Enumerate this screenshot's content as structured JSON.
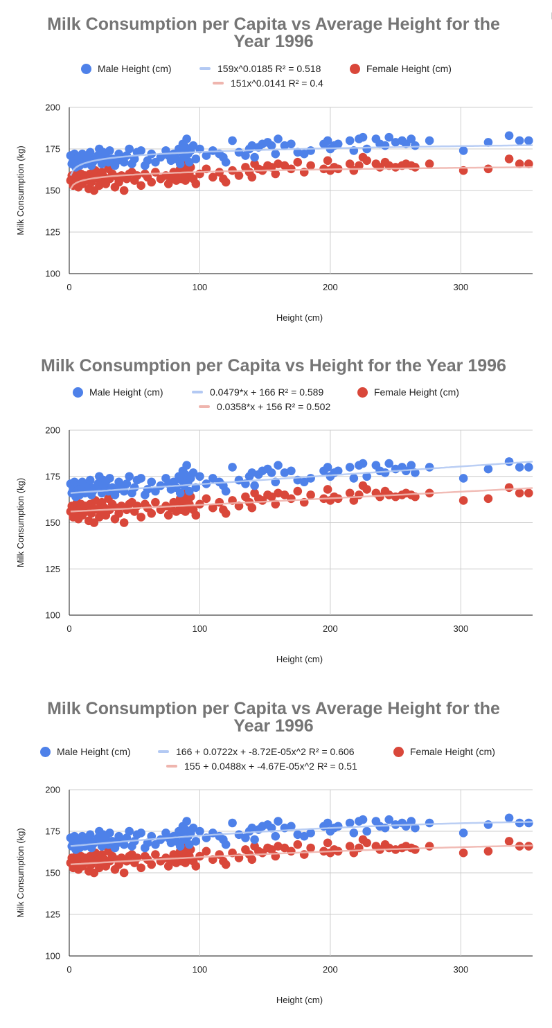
{
  "chart_data": [
    {
      "type": "scatter",
      "title_lines": [
        "Milk Consumption per Capita vs Average Height for the",
        "Year 1996"
      ],
      "xlabel": "Height (cm)",
      "ylabel": "Milk Consumption (kg)",
      "xlim": [
        0,
        355
      ],
      "ylim": [
        100,
        200
      ],
      "xticks": [
        0,
        100,
        200,
        300
      ],
      "yticks": [
        100,
        125,
        150,
        175,
        200
      ],
      "grid": true,
      "legend_position": "top",
      "legend": {
        "male": "Male Height (cm)",
        "male_trend": "159x^0.0185 R² = 0.518",
        "female": "Female Height (cm)",
        "female_trend": "151x^0.0141 R² = 0.4"
      },
      "trendline_type": "power",
      "trend_male": {
        "a": 159,
        "b": 0.0185
      },
      "trend_female": {
        "a": 151,
        "b": 0.0141
      }
    },
    {
      "type": "scatter",
      "title_lines": [
        "Milk Consumption per Capita vs Height for the Year 1996"
      ],
      "xlabel": "Height (cm)",
      "ylabel": "Milk Consumption (kg)",
      "xlim": [
        0,
        355
      ],
      "ylim": [
        100,
        200
      ],
      "xticks": [
        0,
        100,
        200,
        300
      ],
      "yticks": [
        100,
        125,
        150,
        175,
        200
      ],
      "grid": true,
      "legend_position": "top",
      "legend": {
        "male": "Male Height (cm)",
        "male_trend": "0.0479*x + 166 R² = 0.589",
        "female": "Female Height (cm)",
        "female_trend": "0.0358*x + 156 R² = 0.502"
      },
      "trendline_type": "linear",
      "trend_male": {
        "m": 0.0479,
        "c": 166
      },
      "trend_female": {
        "m": 0.0358,
        "c": 156
      }
    },
    {
      "type": "scatter",
      "title_lines": [
        "Milk Consumption per Capita vs Average Height for the",
        "Year 1996"
      ],
      "xlabel": "Height (cm)",
      "ylabel": "Milk Consumption (kg)",
      "xlim": [
        0,
        355
      ],
      "ylim": [
        100,
        200
      ],
      "xticks": [
        0,
        100,
        200,
        300
      ],
      "yticks": [
        100,
        125,
        150,
        175,
        200
      ],
      "grid": true,
      "legend_position": "top",
      "legend": {
        "male": "Male Height (cm)",
        "male_trend": "166 + 0.0722x + -8.72E-05x^2 R² = 0.606",
        "female": "Female Height (cm)",
        "female_trend": "155 + 0.0488x + -4.67E-05x^2 R² = 0.51"
      },
      "trendline_type": "polynomial",
      "trend_male": {
        "c0": 166,
        "c1": 0.0722,
        "c2": -8.72e-05
      },
      "trend_female": {
        "c0": 155,
        "c1": 0.0488,
        "c2": -4.67e-05
      }
    }
  ],
  "series_data": {
    "male_points": [
      [
        1,
        171
      ],
      [
        2,
        166
      ],
      [
        3,
        168
      ],
      [
        4,
        172
      ],
      [
        5,
        164
      ],
      [
        6,
        167
      ],
      [
        7,
        170
      ],
      [
        8,
        165
      ],
      [
        9,
        169
      ],
      [
        10,
        172
      ],
      [
        12,
        166
      ],
      [
        13,
        168
      ],
      [
        15,
        170
      ],
      [
        16,
        173
      ],
      [
        17,
        165
      ],
      [
        18,
        167
      ],
      [
        20,
        169
      ],
      [
        22,
        171
      ],
      [
        23,
        175
      ],
      [
        24,
        168
      ],
      [
        25,
        166
      ],
      [
        26,
        173
      ],
      [
        27,
        170
      ],
      [
        28,
        172
      ],
      [
        30,
        167
      ],
      [
        31,
        174
      ],
      [
        33,
        169
      ],
      [
        35,
        165
      ],
      [
        37,
        168
      ],
      [
        38,
        172
      ],
      [
        40,
        170
      ],
      [
        42,
        167
      ],
      [
        44,
        171
      ],
      [
        46,
        175
      ],
      [
        48,
        166
      ],
      [
        50,
        169
      ],
      [
        52,
        173
      ],
      [
        55,
        174
      ],
      [
        58,
        165
      ],
      [
        60,
        168
      ],
      [
        63,
        172
      ],
      [
        66,
        167
      ],
      [
        70,
        170
      ],
      [
        74,
        174
      ],
      [
        76,
        171
      ],
      [
        78,
        168
      ],
      [
        80,
        172
      ],
      [
        82,
        169
      ],
      [
        84,
        175
      ],
      [
        85,
        166
      ],
      [
        86,
        173
      ],
      [
        87,
        178
      ],
      [
        88,
        170
      ],
      [
        89,
        176
      ],
      [
        90,
        181
      ],
      [
        91,
        172
      ],
      [
        92,
        167
      ],
      [
        93,
        174
      ],
      [
        95,
        177
      ],
      [
        97,
        169
      ],
      [
        100,
        175
      ],
      [
        105,
        171
      ],
      [
        110,
        174
      ],
      [
        115,
        172
      ],
      [
        118,
        170
      ],
      [
        120,
        167
      ],
      [
        125,
        180
      ],
      [
        130,
        173
      ],
      [
        135,
        171
      ],
      [
        138,
        175
      ],
      [
        140,
        177
      ],
      [
        142,
        170
      ],
      [
        145,
        176
      ],
      [
        148,
        178
      ],
      [
        152,
        179
      ],
      [
        155,
        177
      ],
      [
        158,
        172
      ],
      [
        160,
        181
      ],
      [
        165,
        177
      ],
      [
        170,
        178
      ],
      [
        175,
        173
      ],
      [
        180,
        172
      ],
      [
        185,
        174
      ],
      [
        195,
        178
      ],
      [
        198,
        180
      ],
      [
        200,
        175
      ],
      [
        203,
        177
      ],
      [
        206,
        178
      ],
      [
        215,
        180
      ],
      [
        218,
        174
      ],
      [
        222,
        181
      ],
      [
        225,
        182
      ],
      [
        228,
        175
      ],
      [
        235,
        181
      ],
      [
        238,
        178
      ],
      [
        242,
        177
      ],
      [
        245,
        182
      ],
      [
        250,
        179
      ],
      [
        255,
        180
      ],
      [
        258,
        178
      ],
      [
        262,
        181
      ],
      [
        265,
        177
      ],
      [
        276,
        180
      ],
      [
        302,
        174
      ],
      [
        321,
        179
      ],
      [
        337,
        183
      ],
      [
        345,
        180
      ],
      [
        352,
        180
      ]
    ],
    "female_points": [
      [
        1,
        156
      ],
      [
        2,
        159
      ],
      [
        3,
        153
      ],
      [
        4,
        158
      ],
      [
        5,
        155
      ],
      [
        6,
        161
      ],
      [
        7,
        152
      ],
      [
        8,
        157
      ],
      [
        9,
        160
      ],
      [
        10,
        154
      ],
      [
        12,
        159
      ],
      [
        13,
        156
      ],
      [
        15,
        151
      ],
      [
        16,
        160
      ],
      [
        17,
        155
      ],
      [
        18,
        158
      ],
      [
        19,
        150
      ],
      [
        20,
        162
      ],
      [
        22,
        157
      ],
      [
        23,
        153
      ],
      [
        24,
        159
      ],
      [
        25,
        161
      ],
      [
        26,
        156
      ],
      [
        27,
        158
      ],
      [
        28,
        154
      ],
      [
        30,
        163
      ],
      [
        31,
        157
      ],
      [
        33,
        160
      ],
      [
        35,
        152
      ],
      [
        37,
        158
      ],
      [
        38,
        155
      ],
      [
        40,
        159
      ],
      [
        42,
        150
      ],
      [
        44,
        157
      ],
      [
        46,
        160
      ],
      [
        48,
        161
      ],
      [
        50,
        156
      ],
      [
        52,
        159
      ],
      [
        55,
        153
      ],
      [
        58,
        160
      ],
      [
        60,
        158
      ],
      [
        63,
        155
      ],
      [
        66,
        161
      ],
      [
        70,
        157
      ],
      [
        74,
        159
      ],
      [
        76,
        154
      ],
      [
        78,
        158
      ],
      [
        80,
        161
      ],
      [
        82,
        156
      ],
      [
        84,
        160
      ],
      [
        85,
        163
      ],
      [
        86,
        157
      ],
      [
        87,
        159
      ],
      [
        88,
        162
      ],
      [
        89,
        156
      ],
      [
        90,
        166
      ],
      [
        91,
        158
      ],
      [
        92,
        160
      ],
      [
        93,
        164
      ],
      [
        95,
        157
      ],
      [
        97,
        154
      ],
      [
        100,
        160
      ],
      [
        105,
        163
      ],
      [
        110,
        158
      ],
      [
        115,
        161
      ],
      [
        118,
        157
      ],
      [
        120,
        155
      ],
      [
        125,
        162
      ],
      [
        130,
        159
      ],
      [
        135,
        164
      ],
      [
        138,
        161
      ],
      [
        140,
        158
      ],
      [
        142,
        166
      ],
      [
        145,
        163
      ],
      [
        148,
        162
      ],
      [
        152,
        165
      ],
      [
        155,
        164
      ],
      [
        158,
        160
      ],
      [
        160,
        166
      ],
      [
        165,
        165
      ],
      [
        170,
        163
      ],
      [
        175,
        167
      ],
      [
        180,
        161
      ],
      [
        185,
        165
      ],
      [
        195,
        163
      ],
      [
        198,
        168
      ],
      [
        200,
        162
      ],
      [
        203,
        164
      ],
      [
        206,
        163
      ],
      [
        215,
        166
      ],
      [
        218,
        162
      ],
      [
        222,
        165
      ],
      [
        225,
        170
      ],
      [
        228,
        168
      ],
      [
        235,
        166
      ],
      [
        238,
        164
      ],
      [
        242,
        167
      ],
      [
        245,
        165
      ],
      [
        250,
        164
      ],
      [
        255,
        165
      ],
      [
        258,
        166
      ],
      [
        262,
        165
      ],
      [
        265,
        164
      ],
      [
        276,
        166
      ],
      [
        302,
        162
      ],
      [
        321,
        163
      ],
      [
        337,
        169
      ],
      [
        345,
        166
      ],
      [
        352,
        166
      ]
    ]
  },
  "colors": {
    "male": "#4e81e9",
    "female": "#d9473a",
    "male_trend": "#b3c9f3",
    "female_trend": "#efb5ae",
    "grid": "#cccccc",
    "axis": "#444444",
    "title": "#757575"
  }
}
